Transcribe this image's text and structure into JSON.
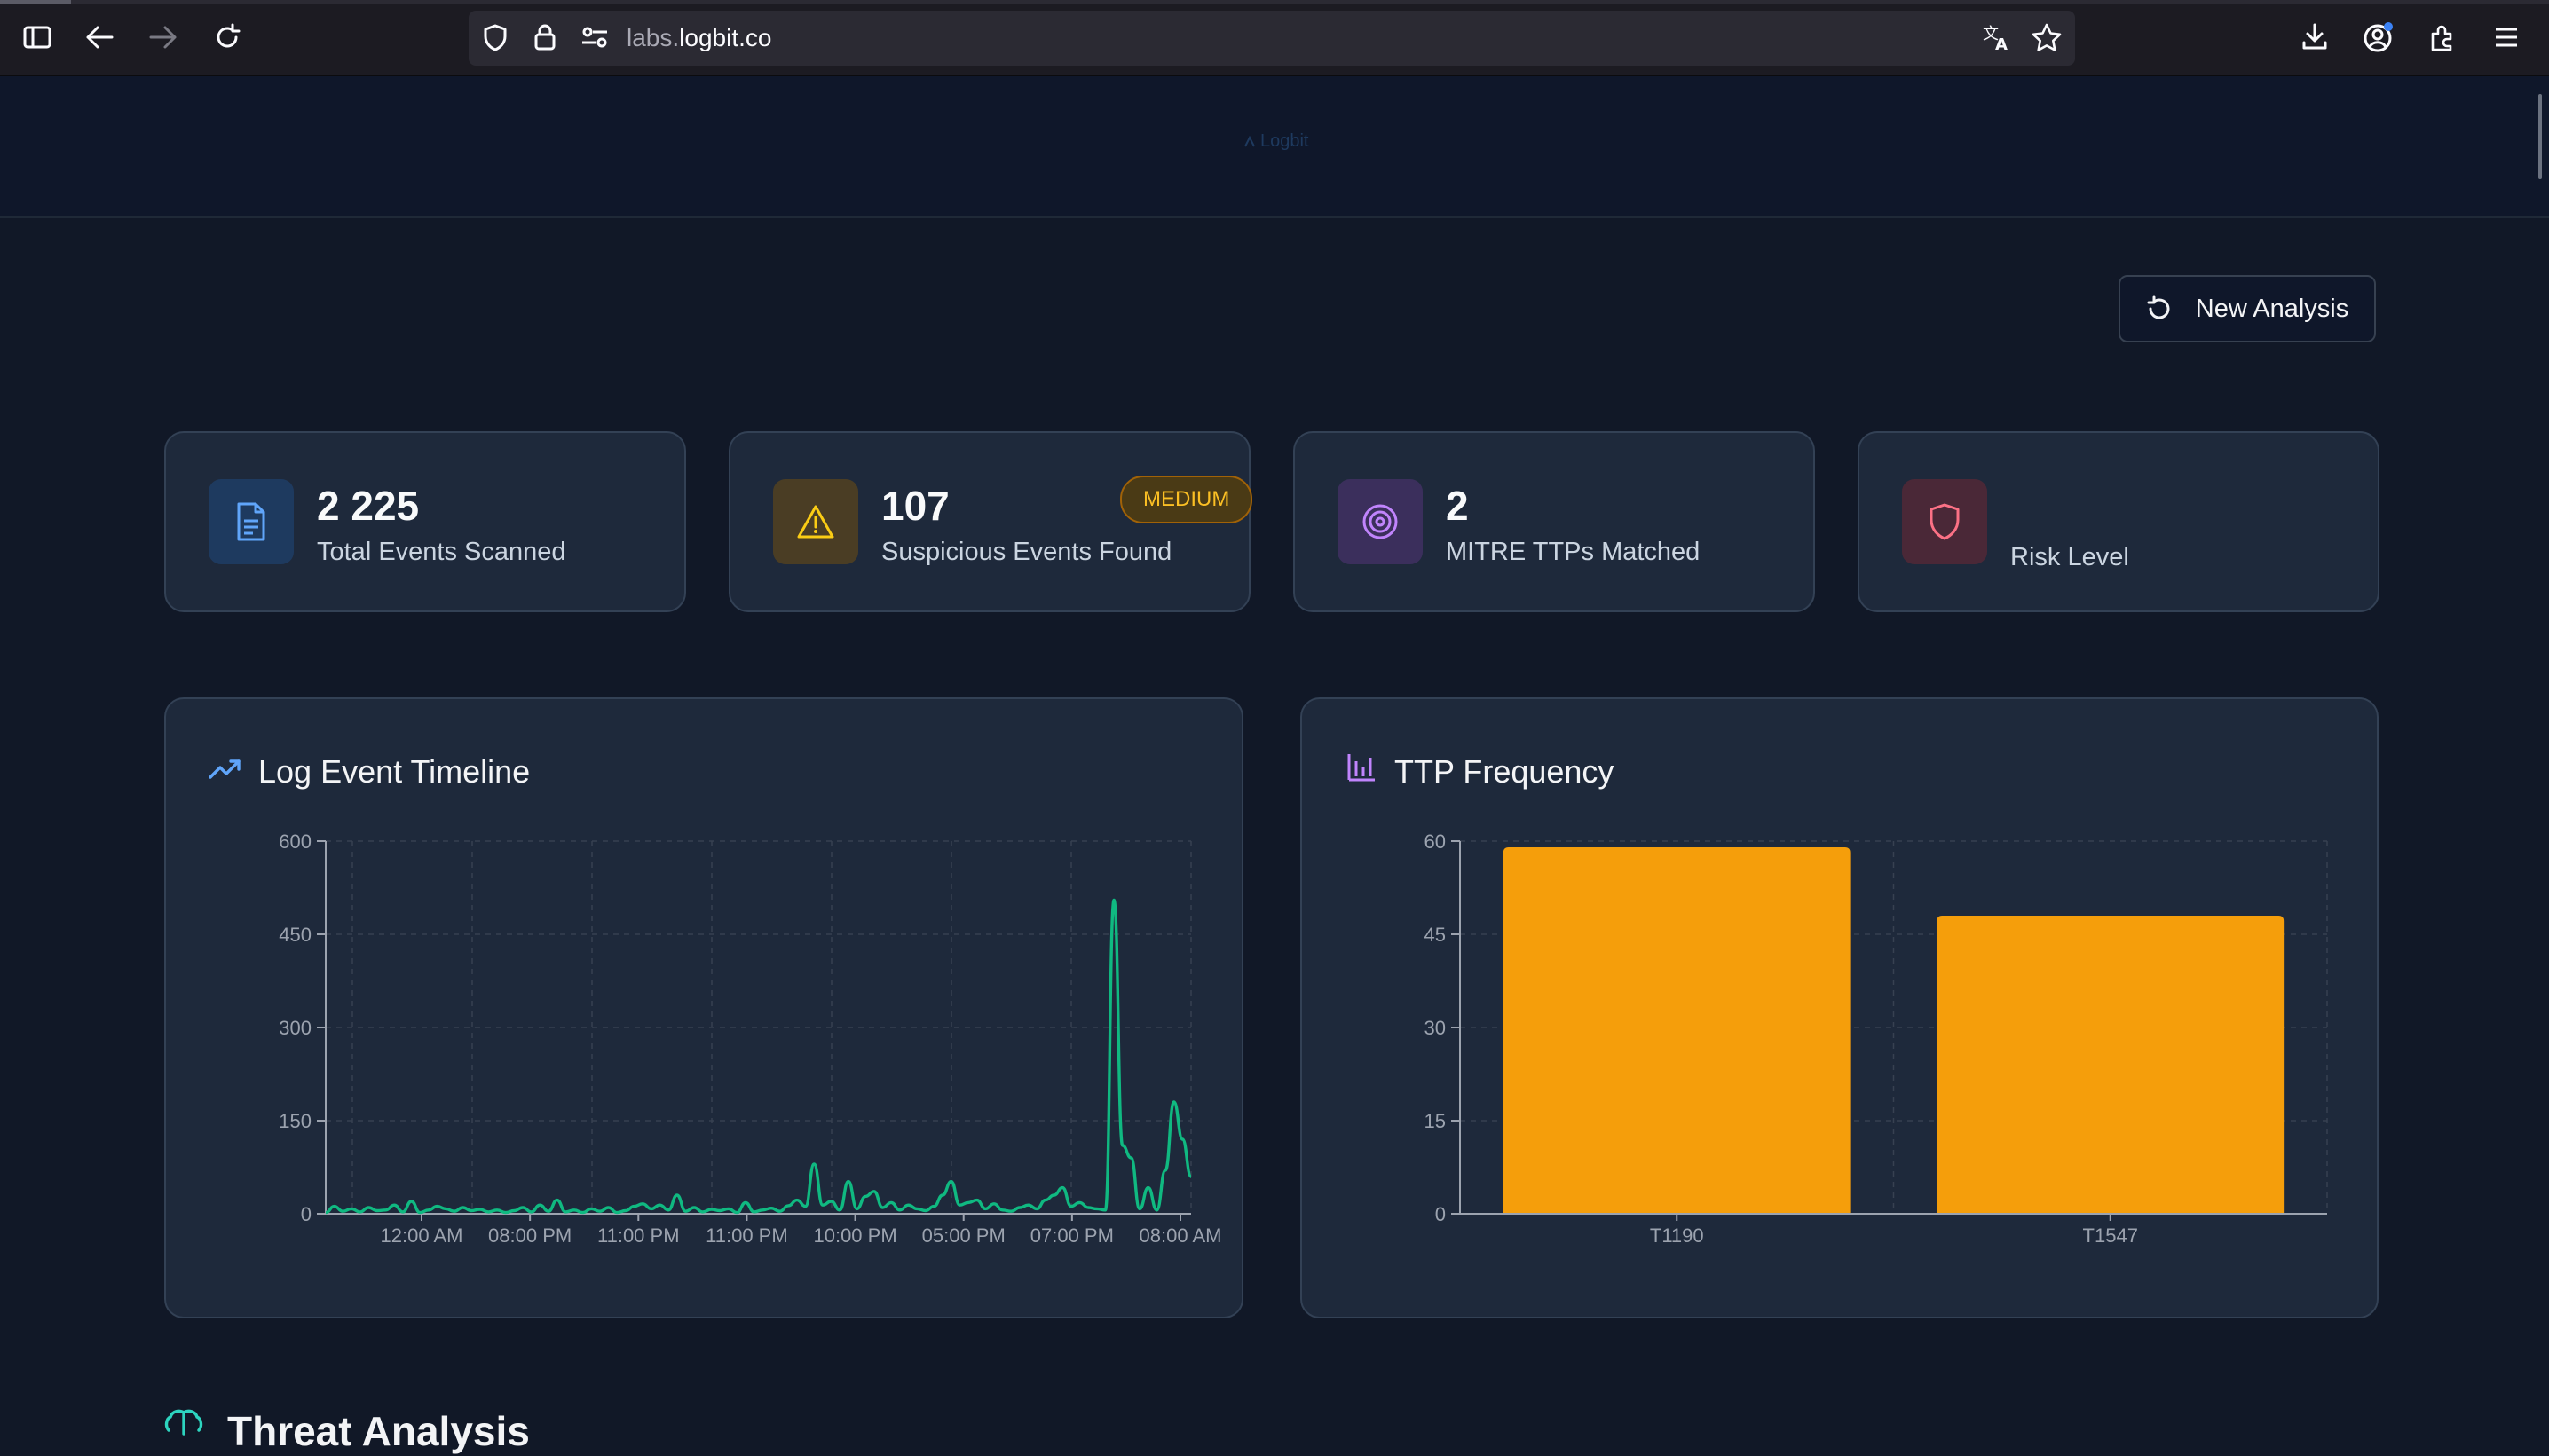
{
  "browser": {
    "url_prefix": "labs.",
    "url_domain": "logbit.co",
    "icons": [
      "sidebar-icon",
      "back-icon",
      "forward-icon",
      "reload-icon",
      "shield-icon",
      "lock-icon",
      "permissions-icon",
      "translate-icon",
      "bookmark-star-icon",
      "download-icon",
      "account-icon",
      "extensions-icon",
      "menu-icon"
    ]
  },
  "header": {
    "logo_text": "Logbit"
  },
  "toolbar": {
    "new_analysis_label": "New Analysis"
  },
  "stats": [
    {
      "value": "2 225",
      "label": "Total Events Scanned",
      "icon": "document-icon",
      "color": "#60a5fa"
    },
    {
      "value": "107",
      "label": "Suspicious Events Found",
      "icon": "warning-icon",
      "color": "#facc15"
    },
    {
      "value": "2",
      "label": "MITRE TTPs Matched",
      "icon": "target-icon",
      "color": "#c084fc"
    },
    {
      "value": "MEDIUM",
      "label": "Risk Level",
      "icon": "shield-icon",
      "color": "#fb7185"
    }
  ],
  "timeline": {
    "title": "Log Event Timeline",
    "accent": "#10b981",
    "chart_data": {
      "type": "line",
      "title": "Log Event Timeline",
      "ylim": [
        0,
        600
      ],
      "yticks": [
        0,
        150,
        300,
        450,
        600
      ],
      "xtick_labels": [
        "12:00 AM",
        "08:00 PM",
        "11:00 PM",
        "11:00 PM",
        "10:00 PM",
        "05:00 PM",
        "07:00 PM",
        "08:00 AM"
      ],
      "values": [
        2,
        12,
        4,
        8,
        3,
        10,
        5,
        6,
        14,
        3,
        20,
        2,
        6,
        12,
        8,
        4,
        10,
        5,
        7,
        3,
        6,
        2,
        5,
        10,
        3,
        14,
        4,
        22,
        3,
        6,
        2,
        8,
        4,
        10,
        2,
        5,
        12,
        16,
        8,
        14,
        6,
        30,
        4,
        10,
        3,
        7,
        5,
        8,
        2,
        18,
        3,
        6,
        9,
        4,
        13,
        22,
        12,
        80,
        14,
        20,
        6,
        52,
        8,
        28,
        36,
        10,
        18,
        6,
        14,
        8,
        5,
        12,
        30,
        52,
        14,
        18,
        22,
        8,
        16,
        6,
        4,
        10,
        14,
        8,
        22,
        30,
        42,
        12,
        18,
        10,
        8,
        6,
        505,
        110,
        90,
        8,
        42,
        6,
        70,
        180,
        120,
        60
      ]
    }
  },
  "ttp": {
    "title": "TTP Frequency",
    "chart_data": {
      "type": "bar",
      "title": "TTP Frequency",
      "categories": [
        "T1190",
        "T1547"
      ],
      "values": [
        59,
        48
      ],
      "ylim": [
        0,
        60
      ],
      "yticks": [
        0,
        15,
        30,
        45,
        60
      ],
      "color": "#f59e0b"
    }
  },
  "section": {
    "title": "Threat Analysis",
    "icon": "brain-icon"
  }
}
